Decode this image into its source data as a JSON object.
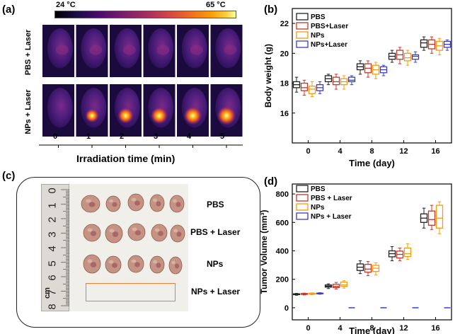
{
  "panels": {
    "a": {
      "label": "(a)",
      "colorbar": {
        "min_label": "24 °C",
        "max_label": "65 °C"
      },
      "rows": [
        "PBS + Laser",
        "NPs + Laser"
      ],
      "times": [
        "0",
        "1",
        "2",
        "3",
        "4",
        "5"
      ],
      "xlabel": "Irradiation time (min)",
      "hotspot_intensity": [
        0,
        0.45,
        0.65,
        0.75,
        0.85,
        0.9
      ]
    },
    "b": {
      "label": "(b)"
    },
    "c": {
      "label": "(c)",
      "groups": [
        "PBS",
        "PBS + Laser",
        "NPs",
        "NPs + Laser"
      ],
      "ruler_numbers": [
        "0",
        "1",
        "2",
        "3",
        "4",
        "5",
        "6",
        "7",
        "8"
      ],
      "ruler_unit": "cm"
    },
    "d": {
      "label": "(d)"
    }
  },
  "chart_data": [
    {
      "id": "b",
      "type": "box",
      "xlabel": "Time (day)",
      "ylabel": "Body weight (g)",
      "categories": [
        "0",
        "4",
        "8",
        "12",
        "16"
      ],
      "ylim": [
        14.0,
        23.0
      ],
      "yticks": [
        "16",
        "18",
        "20",
        "22"
      ],
      "legend": "top-left",
      "series": [
        {
          "name": "PBS",
          "color": "#222222",
          "boxes": [
            {
              "min": 17.4,
              "q1": 17.7,
              "median": 17.9,
              "q3": 18.1,
              "max": 18.4
            },
            {
              "min": 17.9,
              "q1": 18.1,
              "median": 18.3,
              "q3": 18.5,
              "max": 18.6
            },
            {
              "min": 18.6,
              "q1": 18.9,
              "median": 19.1,
              "q3": 19.3,
              "max": 19.5
            },
            {
              "min": 19.4,
              "q1": 19.6,
              "median": 19.8,
              "q3": 20.0,
              "max": 20.2
            },
            {
              "min": 20.2,
              "q1": 20.4,
              "median": 20.7,
              "q3": 20.9,
              "max": 21.1
            }
          ]
        },
        {
          "name": "PBS+Laser",
          "color": "#c0392b",
          "boxes": [
            {
              "min": 17.2,
              "q1": 17.5,
              "median": 17.7,
              "q3": 18.0,
              "max": 18.2
            },
            {
              "min": 17.6,
              "q1": 17.9,
              "median": 18.1,
              "q3": 18.4,
              "max": 18.6
            },
            {
              "min": 18.4,
              "q1": 18.7,
              "median": 19.0,
              "q3": 19.3,
              "max": 19.5
            },
            {
              "min": 19.3,
              "q1": 19.6,
              "median": 19.9,
              "q3": 20.2,
              "max": 20.4
            },
            {
              "min": 20.0,
              "q1": 20.3,
              "median": 20.6,
              "q3": 20.9,
              "max": 21.1
            }
          ]
        },
        {
          "name": "NPs",
          "color": "#f39c12",
          "boxes": [
            {
              "min": 17.1,
              "q1": 17.3,
              "median": 17.6,
              "q3": 17.8,
              "max": 18.1
            },
            {
              "min": 17.6,
              "q1": 17.9,
              "median": 18.1,
              "q3": 18.3,
              "max": 18.5
            },
            {
              "min": 18.3,
              "q1": 18.6,
              "median": 18.9,
              "q3": 19.2,
              "max": 19.4
            },
            {
              "min": 19.2,
              "q1": 19.5,
              "median": 19.7,
              "q3": 20.0,
              "max": 20.2
            },
            {
              "min": 19.9,
              "q1": 20.2,
              "median": 20.5,
              "q3": 20.8,
              "max": 21.0
            }
          ]
        },
        {
          "name": "NPs+Laser",
          "color": "#3b3dbf",
          "boxes": [
            {
              "min": 17.3,
              "q1": 17.5,
              "median": 17.7,
              "q3": 17.9,
              "max": 18.1
            },
            {
              "min": 17.9,
              "q1": 18.1,
              "median": 18.2,
              "q3": 18.4,
              "max": 18.5
            },
            {
              "min": 18.5,
              "q1": 18.7,
              "median": 18.9,
              "q3": 19.1,
              "max": 19.2
            },
            {
              "min": 19.4,
              "q1": 19.6,
              "median": 19.8,
              "q3": 19.9,
              "max": 20.1
            },
            {
              "min": 20.2,
              "q1": 20.4,
              "median": 20.6,
              "q3": 20.8,
              "max": 20.9
            }
          ]
        }
      ]
    },
    {
      "id": "d",
      "type": "box",
      "xlabel": "Time (day)",
      "ylabel": "Tumor Volume (mm³)",
      "categories": [
        "0",
        "4",
        "8",
        "12",
        "16"
      ],
      "ylim": [
        -85,
        870
      ],
      "yticks": [
        "0",
        "200",
        "400",
        "600",
        "800"
      ],
      "legend": "top-left",
      "series": [
        {
          "name": "PBS",
          "color": "#222222",
          "boxes": [
            {
              "min": 88,
              "q1": 92,
              "median": 95,
              "q3": 98,
              "max": 101
            },
            {
              "min": 135,
              "q1": 145,
              "median": 152,
              "q3": 160,
              "max": 168
            },
            {
              "min": 240,
              "q1": 262,
              "median": 285,
              "q3": 308,
              "max": 330
            },
            {
              "min": 330,
              "q1": 358,
              "median": 380,
              "q3": 400,
              "max": 430
            },
            {
              "min": 560,
              "q1": 600,
              "median": 630,
              "q3": 660,
              "max": 700
            }
          ]
        },
        {
          "name": "PBS + Laser",
          "color": "#c0392b",
          "boxes": [
            {
              "min": 90,
              "q1": 94,
              "median": 97,
              "q3": 100,
              "max": 103
            },
            {
              "min": 132,
              "q1": 142,
              "median": 150,
              "q3": 165,
              "max": 178
            },
            {
              "min": 225,
              "q1": 250,
              "median": 272,
              "q3": 305,
              "max": 325
            },
            {
              "min": 330,
              "q1": 350,
              "median": 375,
              "q3": 398,
              "max": 420
            },
            {
              "min": 550,
              "q1": 580,
              "median": 620,
              "q3": 680,
              "max": 720
            }
          ]
        },
        {
          "name": "NPs",
          "color": "#f39c12",
          "boxes": [
            {
              "min": 92,
              "q1": 96,
              "median": 99,
              "q3": 102,
              "max": 105
            },
            {
              "min": 138,
              "q1": 150,
              "median": 160,
              "q3": 180,
              "max": 190
            },
            {
              "min": 230,
              "q1": 255,
              "median": 278,
              "q3": 298,
              "max": 315
            },
            {
              "min": 340,
              "q1": 360,
              "median": 380,
              "q3": 420,
              "max": 450
            },
            {
              "min": 520,
              "q1": 560,
              "median": 630,
              "q3": 720,
              "max": 745
            }
          ]
        },
        {
          "name": "NPs + Laser",
          "color": "#3b3dbf",
          "boxes": [
            {
              "min": 95,
              "q1": 98,
              "median": 100,
              "q3": 103,
              "max": 106
            },
            {
              "min": 0,
              "q1": 0,
              "median": 0,
              "q3": 0,
              "max": 0
            },
            {
              "min": 0,
              "q1": 0,
              "median": 0,
              "q3": 0,
              "max": 0
            },
            {
              "min": 0,
              "q1": 0,
              "median": 0,
              "q3": 0,
              "max": 0
            },
            {
              "min": 0,
              "q1": 0,
              "median": 0,
              "q3": 0,
              "max": 0
            }
          ]
        }
      ]
    }
  ]
}
